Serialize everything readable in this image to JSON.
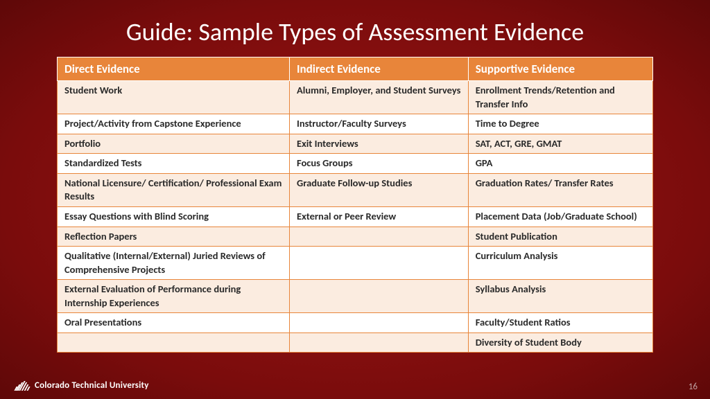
{
  "title": "Guide:  Sample Types of Assessment Evidence",
  "table": {
    "headers": [
      "Direct Evidence",
      "Indirect Evidence",
      "Supportive Evidence"
    ],
    "rows": [
      [
        "Student Work",
        "Alumni, Employer, and Student Surveys",
        "Enrollment Trends/Retention and Transfer Info"
      ],
      [
        "Project/Activity from Capstone Experience",
        "Instructor/Faculty Surveys",
        "Time to Degree"
      ],
      [
        "Portfolio",
        "Exit Interviews",
        "SAT, ACT, GRE, GMAT"
      ],
      [
        "Standardized Tests",
        "Focus Groups",
        "GPA"
      ],
      [
        "National Licensure/ Certification/ Professional Exam Results",
        "Graduate Follow-up Studies",
        "Graduation Rates/ Transfer Rates"
      ],
      [
        "Essay Questions with Blind Scoring",
        "External or Peer Review",
        "Placement Data (Job/Graduate School)"
      ],
      [
        "Reflection Papers",
        "",
        "Student Publication"
      ],
      [
        "Qualitative (Internal/External) Juried Reviews of Comprehensive Projects",
        "",
        "Curriculum Analysis"
      ],
      [
        "External Evaluation of Performance during Internship Experiences",
        "",
        "Syllabus Analysis"
      ],
      [
        "Oral Presentations",
        "",
        "Faculty/Student Ratios"
      ],
      [
        "",
        "",
        "Diversity of Student Body"
      ]
    ],
    "header_bg": "#e8853a",
    "header_fg": "#ffffff",
    "row_odd_bg": "#fbece0",
    "row_even_bg": "#ffffff",
    "cell_fg": "#2a2a2a",
    "border_color": "#e8853a",
    "header_fontsize": 17,
    "cell_fontsize": 14.5
  },
  "footer": {
    "org": "Colorado Technical University"
  },
  "page_number": "16",
  "background": {
    "gradient_center": "#a01515",
    "gradient_edge": "#5e0808"
  }
}
